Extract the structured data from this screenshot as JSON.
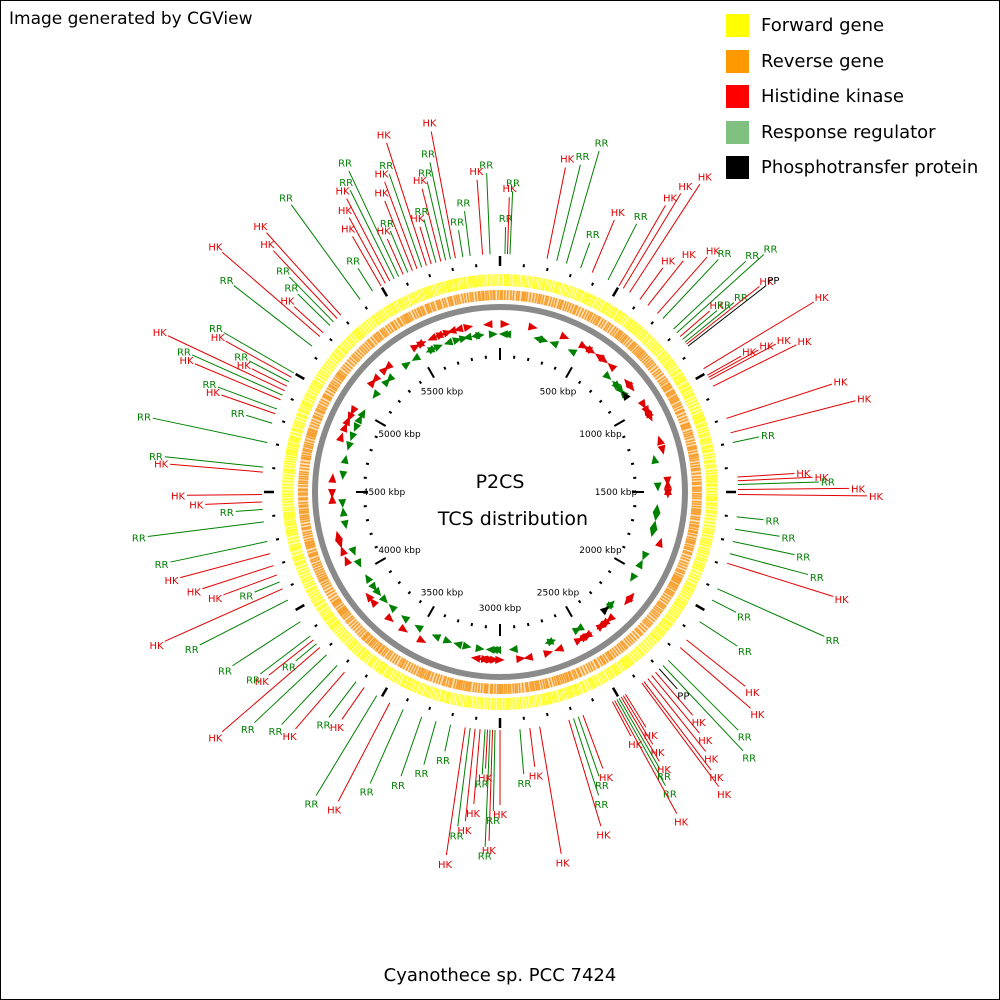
{
  "credit": "Image generated by CGView",
  "organism": "Cyanothece sp. PCC 7424",
  "center": {
    "line1": "P2CS",
    "line2": "TCS distribution"
  },
  "legend": [
    {
      "label": "Forward gene",
      "color": "#FFFF00"
    },
    {
      "label": "Reverse gene",
      "color": "#FF9900"
    },
    {
      "label": "Histidine kinase",
      "color": "#FF0000"
    },
    {
      "label": "Response regulator",
      "color": "#80C080"
    },
    {
      "label": "Phosphotransfer protein",
      "color": "#000000"
    }
  ],
  "colors": {
    "hk": "#E00000",
    "rr": "#008000",
    "pp": "#000000",
    "backbone": "#8A8A8A",
    "forward": "#FFFF33",
    "reverse": "#F7A030"
  },
  "chart_data": {
    "type": "circular_genome_map",
    "genome_length_kbp": 6000,
    "ticks_kbp": [
      500,
      1000,
      1500,
      2000,
      2500,
      3000,
      3500,
      4000,
      4500,
      5000,
      5500
    ],
    "tick_labels": [
      "500 kbp",
      "1000 kbp",
      "1500 kbp",
      "2000 kbp",
      "2500 kbp",
      "3000 kbp",
      "3500 kbp",
      "4000 kbp",
      "4500 kbp",
      "5000 kbp",
      "5500 kbp"
    ],
    "features": [
      {
        "kbp": 20,
        "type": "RR"
      },
      {
        "kbp": 30,
        "type": "HK"
      },
      {
        "kbp": 40,
        "type": "RR"
      },
      {
        "kbp": 190,
        "type": "HK"
      },
      {
        "kbp": 230,
        "type": "RR"
      },
      {
        "kbp": 270,
        "type": "RR"
      },
      {
        "kbp": 330,
        "type": "RR"
      },
      {
        "kbp": 380,
        "type": "HK"
      },
      {
        "kbp": 450,
        "type": "RR"
      },
      {
        "kbp": 500,
        "type": "HK"
      },
      {
        "kbp": 520,
        "type": "HK"
      },
      {
        "kbp": 550,
        "type": "HK"
      },
      {
        "kbp": 600,
        "type": "HK"
      },
      {
        "kbp": 640,
        "type": "HK"
      },
      {
        "kbp": 690,
        "type": "HK"
      },
      {
        "kbp": 720,
        "type": "RR"
      },
      {
        "kbp": 780,
        "type": "RR"
      },
      {
        "kbp": 800,
        "type": "RR"
      },
      {
        "kbp": 820,
        "type": "HK"
      },
      {
        "kbp": 835,
        "type": "RR"
      },
      {
        "kbp": 850,
        "type": "RR"
      },
      {
        "kbp": 860,
        "type": "HK"
      },
      {
        "kbp": 870,
        "type": "PP"
      },
      {
        "kbp": 980,
        "type": "HK"
      },
      {
        "kbp": 1010,
        "type": "HK"
      },
      {
        "kbp": 1020,
        "type": "HK"
      },
      {
        "kbp": 1030,
        "type": "HK"
      },
      {
        "kbp": 1060,
        "type": "HK"
      },
      {
        "kbp": 1200,
        "type": "HK"
      },
      {
        "kbp": 1260,
        "type": "HK"
      },
      {
        "kbp": 1300,
        "type": "RR"
      },
      {
        "kbp": 1440,
        "type": "HK"
      },
      {
        "kbp": 1455,
        "type": "HK"
      },
      {
        "kbp": 1470,
        "type": "RR"
      },
      {
        "kbp": 1490,
        "type": "HK"
      },
      {
        "kbp": 1510,
        "type": "HK"
      },
      {
        "kbp": 1600,
        "type": "RR"
      },
      {
        "kbp": 1650,
        "type": "RR"
      },
      {
        "kbp": 1700,
        "type": "RR"
      },
      {
        "kbp": 1750,
        "type": "RR"
      },
      {
        "kbp": 1790,
        "type": "HK"
      },
      {
        "kbp": 1900,
        "type": "RR"
      },
      {
        "kbp": 1950,
        "type": "RR"
      },
      {
        "kbp": 2050,
        "type": "RR"
      },
      {
        "kbp": 2140,
        "type": "HK"
      },
      {
        "kbp": 2180,
        "type": "HK"
      },
      {
        "kbp": 2250,
        "type": "RR"
      },
      {
        "kbp": 2280,
        "type": "RR"
      },
      {
        "kbp": 2300,
        "type": "PP"
      },
      {
        "kbp": 2320,
        "type": "HK"
      },
      {
        "kbp": 2340,
        "type": "HK"
      },
      {
        "kbp": 2360,
        "type": "HK"
      },
      {
        "kbp": 2380,
        "type": "HK"
      },
      {
        "kbp": 2390,
        "type": "HK"
      },
      {
        "kbp": 2470,
        "type": "HK"
      },
      {
        "kbp": 2480,
        "type": "HK"
      },
      {
        "kbp": 2490,
        "type": "HK"
      },
      {
        "kbp": 2500,
        "type": "RR"
      },
      {
        "kbp": 2510,
        "type": "RR"
      },
      {
        "kbp": 2520,
        "type": "HK"
      },
      {
        "kbp": 2530,
        "type": "HK"
      },
      {
        "kbp": 2660,
        "type": "HK"
      },
      {
        "kbp": 2680,
        "type": "RR"
      },
      {
        "kbp": 2700,
        "type": "RR"
      },
      {
        "kbp": 2720,
        "type": "HK"
      },
      {
        "kbp": 2840,
        "type": "HK"
      },
      {
        "kbp": 2880,
        "type": "HK"
      },
      {
        "kbp": 2920,
        "type": "RR"
      },
      {
        "kbp": 3000,
        "type": "HK"
      },
      {
        "kbp": 3020,
        "type": "RR"
      },
      {
        "kbp": 3030,
        "type": "HK"
      },
      {
        "kbp": 3040,
        "type": "RR"
      },
      {
        "kbp": 3050,
        "type": "HK"
      },
      {
        "kbp": 3060,
        "type": "RR"
      },
      {
        "kbp": 3080,
        "type": "HK"
      },
      {
        "kbp": 3100,
        "type": "HK"
      },
      {
        "kbp": 3120,
        "type": "RR"
      },
      {
        "kbp": 3140,
        "type": "HK"
      },
      {
        "kbp": 3200,
        "type": "RR"
      },
      {
        "kbp": 3260,
        "type": "RR"
      },
      {
        "kbp": 3320,
        "type": "RR"
      },
      {
        "kbp": 3400,
        "type": "RR"
      },
      {
        "kbp": 3460,
        "type": "HK"
      },
      {
        "kbp": 3520,
        "type": "RR"
      },
      {
        "kbp": 3580,
        "type": "HK"
      },
      {
        "kbp": 3620,
        "type": "RR"
      },
      {
        "kbp": 3680,
        "type": "HK"
      },
      {
        "kbp": 3720,
        "type": "RR"
      },
      {
        "kbp": 3780,
        "type": "RR"
      },
      {
        "kbp": 3820,
        "type": "HK"
      },
      {
        "kbp": 3840,
        "type": "RR"
      },
      {
        "kbp": 3860,
        "type": "HK"
      },
      {
        "kbp": 3880,
        "type": "RR"
      },
      {
        "kbp": 3950,
        "type": "RR"
      },
      {
        "kbp": 4050,
        "type": "RR"
      },
      {
        "kbp": 4100,
        "type": "HK"
      },
      {
        "kbp": 4130,
        "type": "RR"
      },
      {
        "kbp": 4160,
        "type": "HK"
      },
      {
        "kbp": 4200,
        "type": "HK"
      },
      {
        "kbp": 4250,
        "type": "HK"
      },
      {
        "kbp": 4300,
        "type": "RR"
      },
      {
        "kbp": 4380,
        "type": "RR"
      },
      {
        "kbp": 4430,
        "type": "RR"
      },
      {
        "kbp": 4460,
        "type": "HK"
      },
      {
        "kbp": 4490,
        "type": "HK"
      },
      {
        "kbp": 4580,
        "type": "HK"
      },
      {
        "kbp": 4600,
        "type": "RR"
      },
      {
        "kbp": 4700,
        "type": "RR"
      },
      {
        "kbp": 4780,
        "type": "RR"
      },
      {
        "kbp": 4820,
        "type": "HK"
      },
      {
        "kbp": 4840,
        "type": "RR"
      },
      {
        "kbp": 4880,
        "type": "HK"
      },
      {
        "kbp": 4900,
        "type": "RR"
      },
      {
        "kbp": 4920,
        "type": "HK"
      },
      {
        "kbp": 4940,
        "type": "HK"
      },
      {
        "kbp": 4960,
        "type": "RR"
      },
      {
        "kbp": 4980,
        "type": "HK"
      },
      {
        "kbp": 5000,
        "type": "RR"
      },
      {
        "kbp": 5130,
        "type": "RR"
      },
      {
        "kbp": 5180,
        "type": "HK"
      },
      {
        "kbp": 5200,
        "type": "HK"
      },
      {
        "kbp": 5240,
        "type": "RR"
      },
      {
        "kbp": 5260,
        "type": "RR"
      },
      {
        "kbp": 5280,
        "type": "HK"
      },
      {
        "kbp": 5300,
        "type": "HK"
      },
      {
        "kbp": 5400,
        "type": "RR"
      },
      {
        "kbp": 5460,
        "type": "RR"
      },
      {
        "kbp": 5500,
        "type": "HK"
      },
      {
        "kbp": 5520,
        "type": "HK"
      },
      {
        "kbp": 5540,
        "type": "HK"
      },
      {
        "kbp": 5560,
        "type": "RR"
      },
      {
        "kbp": 5580,
        "type": "RR"
      },
      {
        "kbp": 5600,
        "type": "HK"
      },
      {
        "kbp": 5620,
        "type": "RR"
      },
      {
        "kbp": 5640,
        "type": "HK"
      },
      {
        "kbp": 5660,
        "type": "HK"
      },
      {
        "kbp": 5680,
        "type": "RR"
      },
      {
        "kbp": 5700,
        "type": "HK"
      },
      {
        "kbp": 5720,
        "type": "HK"
      },
      {
        "kbp": 5740,
        "type": "RR"
      },
      {
        "kbp": 5760,
        "type": "HK"
      },
      {
        "kbp": 5780,
        "type": "RR"
      },
      {
        "kbp": 5800,
        "type": "RR"
      },
      {
        "kbp": 5820,
        "type": "HK"
      },
      {
        "kbp": 5850,
        "type": "RR"
      },
      {
        "kbp": 5880,
        "type": "RR"
      },
      {
        "kbp": 5930,
        "type": "HK"
      },
      {
        "kbp": 5960,
        "type": "RR"
      }
    ]
  }
}
